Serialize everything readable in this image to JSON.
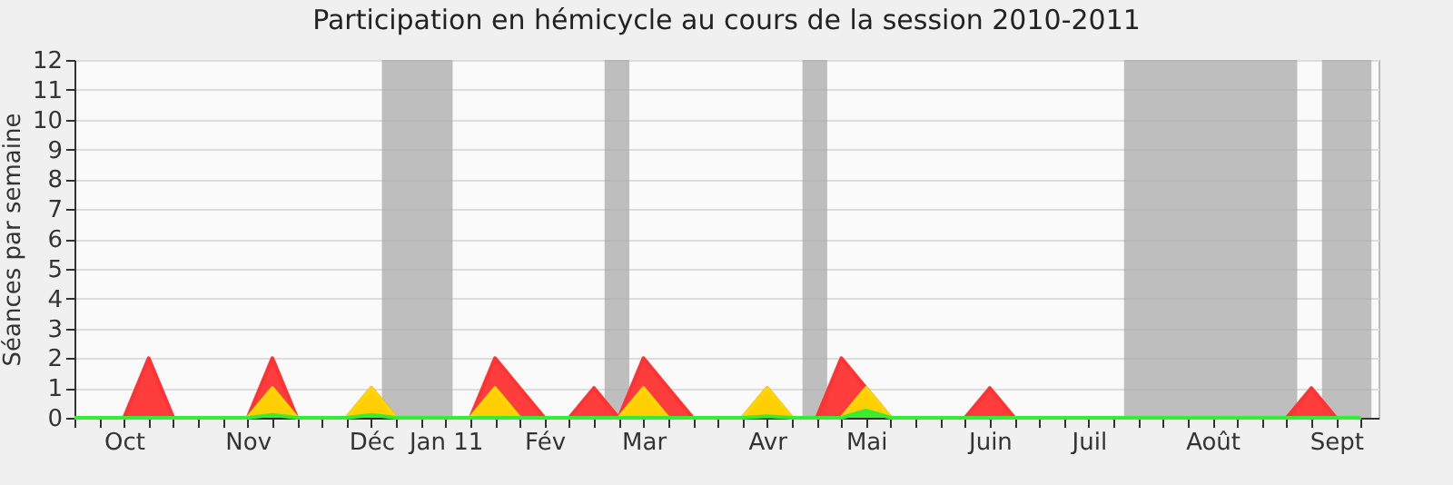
{
  "chart_data": {
    "type": "area",
    "title": "Participation en hémicycle au cours de la session 2010-2011",
    "ylabel": "Séances par semaine",
    "x": [
      "2010-09-21",
      "2010-09-28",
      "2010-10-05",
      "2010-10-12",
      "2010-10-19",
      "2010-10-26",
      "2010-11-02",
      "2010-11-09",
      "2010-11-16",
      "2010-11-23",
      "2010-11-30",
      "2010-12-07",
      "2010-12-14",
      "2010-12-21",
      "2010-12-28",
      "2011-01-04",
      "2011-01-11",
      "2011-01-18",
      "2011-01-25",
      "2011-02-01",
      "2011-02-08",
      "2011-02-15",
      "2011-02-22",
      "2011-03-01",
      "2011-03-08",
      "2011-03-15",
      "2011-03-22",
      "2011-03-29",
      "2011-04-05",
      "2011-04-12",
      "2011-04-19",
      "2011-04-26",
      "2011-05-03",
      "2011-05-10",
      "2011-05-17",
      "2011-05-24",
      "2011-05-31",
      "2011-06-07",
      "2011-06-14",
      "2011-06-21",
      "2011-06-28",
      "2011-07-05",
      "2011-07-12",
      "2011-07-19",
      "2011-07-26",
      "2011-08-02",
      "2011-08-09",
      "2011-08-16",
      "2011-08-23",
      "2011-08-30",
      "2011-09-06",
      "2011-09-13",
      "2011-09-20"
    ],
    "series": [
      {
        "color": "#ff3333",
        "values": [
          0,
          0,
          0,
          2,
          0,
          0,
          0,
          0,
          2,
          0,
          0,
          0,
          1,
          0,
          0,
          0,
          0,
          2,
          1,
          0,
          0,
          1,
          0,
          2,
          1,
          0,
          0,
          0,
          1,
          0,
          0,
          2,
          1,
          0,
          0,
          0,
          0,
          1,
          0,
          0,
          0,
          0,
          0,
          0,
          0,
          0,
          0,
          0,
          0,
          0,
          1,
          0,
          0
        ]
      },
      {
        "color": "#ffd700",
        "values": [
          0,
          0,
          0,
          0,
          0,
          0,
          0,
          0,
          1,
          0,
          0,
          0,
          1,
          0,
          0,
          0,
          0,
          1,
          0,
          0,
          0,
          0,
          0,
          1,
          0,
          0,
          0,
          0,
          1,
          0,
          0,
          0,
          1,
          0,
          0,
          0,
          0,
          0,
          0,
          0,
          0,
          0,
          0,
          0,
          0,
          0,
          0,
          0,
          0,
          0,
          0,
          0,
          0
        ]
      },
      {
        "color": "#33ee33",
        "values": [
          0,
          0,
          0,
          0,
          0,
          0,
          0,
          0,
          0.1,
          0,
          0,
          0,
          0.1,
          0,
          0,
          0,
          0,
          0,
          0,
          0,
          0,
          0,
          0,
          0,
          0,
          0,
          0,
          0,
          0.05,
          0,
          0,
          0,
          0.25,
          0,
          0,
          0,
          0,
          0,
          0,
          0,
          0,
          0,
          0,
          0,
          0,
          0,
          0,
          0,
          0,
          0,
          0,
          0,
          0
        ]
      }
    ],
    "xlim": [
      "2010-09-21",
      "2011-09-25"
    ],
    "xticks": [
      {
        "value": "2010-09-21",
        "label": null
      },
      {
        "value": "2010-09-28",
        "label": null
      },
      {
        "value": "2010-10-05",
        "label": "Oct"
      },
      {
        "value": "2010-10-12",
        "label": null
      },
      {
        "value": "2010-10-19",
        "label": null
      },
      {
        "value": "2010-10-26",
        "label": null
      },
      {
        "value": "2010-11-02",
        "label": null
      },
      {
        "value": "2010-11-09",
        "label": "Nov"
      },
      {
        "value": "2010-11-16",
        "label": null
      },
      {
        "value": "2010-11-23",
        "label": null
      },
      {
        "value": "2010-11-30",
        "label": null
      },
      {
        "value": "2010-12-07",
        "label": null
      },
      {
        "value": "2010-12-14",
        "label": "Déc"
      },
      {
        "value": "2010-12-21",
        "label": null
      },
      {
        "value": "2010-12-28",
        "label": null
      },
      {
        "value": "2011-01-04",
        "label": "Jan 11"
      },
      {
        "value": "2011-01-11",
        "label": null
      },
      {
        "value": "2011-01-18",
        "label": null
      },
      {
        "value": "2011-01-25",
        "label": null
      },
      {
        "value": "2011-02-01",
        "label": "Fév"
      },
      {
        "value": "2011-02-08",
        "label": null
      },
      {
        "value": "2011-02-15",
        "label": null
      },
      {
        "value": "2011-02-22",
        "label": null
      },
      {
        "value": "2011-03-01",
        "label": "Mar"
      },
      {
        "value": "2011-03-08",
        "label": null
      },
      {
        "value": "2011-03-15",
        "label": null
      },
      {
        "value": "2011-03-22",
        "label": null
      },
      {
        "value": "2011-03-29",
        "label": null
      },
      {
        "value": "2011-04-05",
        "label": "Avr"
      },
      {
        "value": "2011-04-12",
        "label": null
      },
      {
        "value": "2011-04-19",
        "label": null
      },
      {
        "value": "2011-04-26",
        "label": null
      },
      {
        "value": "2011-05-03",
        "label": "Mai"
      },
      {
        "value": "2011-05-10",
        "label": null
      },
      {
        "value": "2011-05-17",
        "label": null
      },
      {
        "value": "2011-05-24",
        "label": null
      },
      {
        "value": "2011-05-31",
        "label": null
      },
      {
        "value": "2011-06-07",
        "label": "Juin"
      },
      {
        "value": "2011-06-14",
        "label": null
      },
      {
        "value": "2011-06-21",
        "label": null
      },
      {
        "value": "2011-06-28",
        "label": null
      },
      {
        "value": "2011-07-05",
        "label": "Juil"
      },
      {
        "value": "2011-07-12",
        "label": null
      },
      {
        "value": "2011-07-19",
        "label": null
      },
      {
        "value": "2011-07-26",
        "label": null
      },
      {
        "value": "2011-08-02",
        "label": null
      },
      {
        "value": "2011-08-09",
        "label": "Août"
      },
      {
        "value": "2011-08-16",
        "label": null
      },
      {
        "value": "2011-08-23",
        "label": null
      },
      {
        "value": "2011-08-30",
        "label": null
      },
      {
        "value": "2011-09-06",
        "label": null
      },
      {
        "value": "2011-09-13",
        "label": "Sept"
      },
      {
        "value": "2011-09-20",
        "label": null
      }
    ],
    "ylim": [
      0,
      12
    ],
    "yticks": [
      0,
      1,
      2,
      3,
      4,
      5,
      6,
      7,
      8,
      9,
      10,
      11,
      12
    ],
    "grid": "y",
    "bands": [
      {
        "axis": "x",
        "from": "2010-12-17",
        "to": "2011-01-06",
        "color": "#aaaaaa"
      },
      {
        "axis": "x",
        "from": "2011-02-18",
        "to": "2011-02-25",
        "color": "#aaaaaa"
      },
      {
        "axis": "x",
        "from": "2011-04-15",
        "to": "2011-04-22",
        "color": "#aaaaaa"
      },
      {
        "axis": "x",
        "from": "2011-07-15",
        "to": "2011-09-02",
        "color": "#aaaaaa"
      },
      {
        "axis": "x",
        "from": "2011-09-09",
        "to": "2011-09-23",
        "color": "#aaaaaa"
      }
    ]
  }
}
